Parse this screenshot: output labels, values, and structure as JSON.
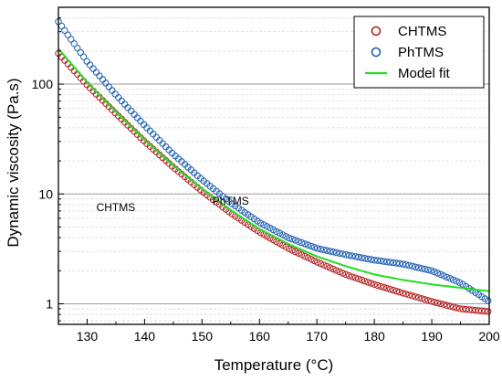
{
  "chart_data": {
    "type": "scatter",
    "xlabel": "Temperature (°C)",
    "ylabel": "Dynamic viscosity (Pa.s)",
    "xlim": [
      125,
      200
    ],
    "ylim": [
      0.65,
      500
    ],
    "yscale": "log",
    "x_ticks": [
      "130",
      "140",
      "150",
      "160",
      "170",
      "180",
      "190",
      "200"
    ],
    "y_ticks": [
      "1",
      "10",
      "100"
    ],
    "grid": "horizontal major and minor lines (log scale)",
    "legend_position": "top-right",
    "annotations": [
      {
        "text": "CHTMS",
        "x": 135,
        "y": 7.0
      },
      {
        "text": "PhTMS",
        "x": 155,
        "y": 8.0
      }
    ],
    "series": [
      {
        "name": "CHTMS",
        "marker": "open-circle",
        "color": "#b22020",
        "x": [
          125,
          130,
          135,
          140,
          145,
          150,
          155,
          160,
          165,
          170,
          175,
          180,
          185,
          190,
          195,
          200
        ],
        "y": [
          190,
          98,
          54,
          30,
          17.5,
          10.6,
          6.7,
          4.5,
          3.2,
          2.4,
          1.85,
          1.5,
          1.25,
          1.05,
          0.9,
          0.85
        ]
      },
      {
        "name": "PhTMS",
        "marker": "open-circle",
        "color": "#1e5fb0",
        "x": [
          125,
          130,
          135,
          140,
          145,
          150,
          155,
          160,
          165,
          170,
          175,
          180,
          185,
          190,
          195,
          200
        ],
        "y": [
          370,
          160,
          80,
          42,
          23,
          13.5,
          8.3,
          5.5,
          4.0,
          3.2,
          2.8,
          2.5,
          2.3,
          2.0,
          1.55,
          1.05
        ]
      },
      {
        "name": "Model fit",
        "marker": "line",
        "color": "#22dd22",
        "x": [
          125,
          130,
          135,
          140,
          145,
          150,
          155,
          160,
          165,
          170,
          175,
          180,
          185,
          190,
          195,
          200
        ],
        "y": [
          210,
          104,
          56,
          31,
          18.2,
          11.2,
          7.1,
          4.8,
          3.5,
          2.7,
          2.2,
          1.85,
          1.65,
          1.5,
          1.4,
          1.3
        ]
      }
    ],
    "legend": [
      {
        "label": "CHTMS",
        "kind": "circle",
        "color": "#b22020"
      },
      {
        "label": "PhTMS",
        "kind": "circle",
        "color": "#1e5fb0"
      },
      {
        "label": "Model fit",
        "kind": "line",
        "color": "#22dd22"
      }
    ]
  }
}
